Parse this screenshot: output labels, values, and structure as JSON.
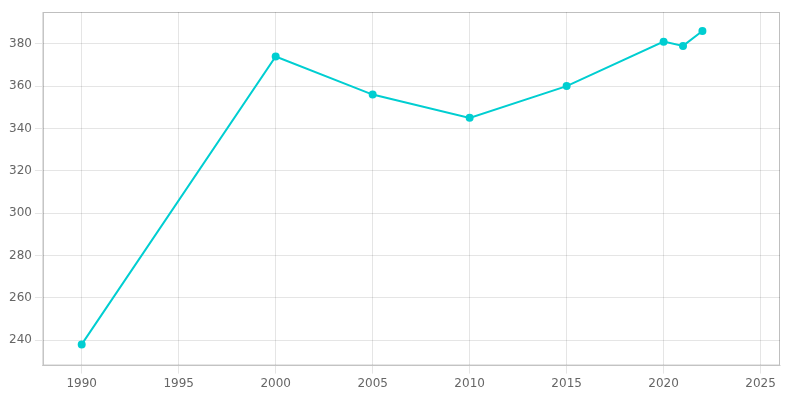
{
  "chart_data": {
    "type": "line",
    "x": [
      1990,
      2000,
      2005,
      2010,
      2015,
      2020,
      2021,
      2022
    ],
    "values": [
      238,
      374,
      356,
      345,
      360,
      381,
      379,
      386
    ],
    "color": "#00CED1",
    "marker": "circle",
    "xlim": [
      1988,
      2026
    ],
    "xticks": [
      1990,
      1995,
      2000,
      2005,
      2010,
      2015,
      2020,
      2025
    ],
    "ylim": [
      228,
      395
    ],
    "yticks": [
      240,
      260,
      280,
      300,
      320,
      340,
      360,
      380
    ],
    "grid": true
  }
}
